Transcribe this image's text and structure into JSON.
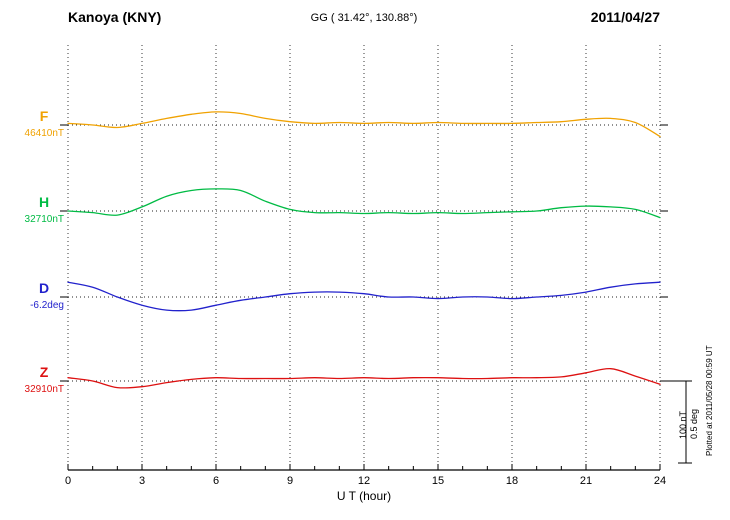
{
  "chart_data": {
    "type": "line",
    "station": "Kanoya (KNY)",
    "coordinates": "GG ( 31.42°, 130.88°)",
    "date": "2011/04/27",
    "xlabel": "U T (hour)",
    "x_range": [
      0,
      24
    ],
    "x_ticks": [
      0,
      3,
      6,
      9,
      12,
      15,
      18,
      21,
      24
    ],
    "x_hours": [
      0,
      1,
      2,
      3,
      4,
      5,
      6,
      7,
      8,
      9,
      10,
      11,
      12,
      13,
      14,
      15,
      16,
      17,
      18,
      19,
      20,
      21,
      22,
      23,
      24
    ],
    "grid": "vertical dotted gridlines every 3 hours; dotted horizontal baseline for each trace",
    "scale_bar": {
      "nt_label": "100 nT",
      "deg_label": "0.5 deg"
    },
    "plotted_at": "Plotted at 2011/05/28 00:59 UT",
    "series": [
      {
        "name": "F",
        "unit": "nT",
        "baseline_label": "46410nT",
        "baseline_value": 46410,
        "color": "#f0a202",
        "offsets": [
          2,
          0,
          -3,
          2,
          8,
          13,
          16,
          14,
          8,
          4,
          2,
          3,
          2,
          3,
          2,
          3,
          2,
          2,
          2,
          3,
          4,
          7,
          8,
          3,
          -14
        ]
      },
      {
        "name": "H",
        "unit": "nT",
        "baseline_label": "32710nT",
        "baseline_value": 32710,
        "color": "#00bb44",
        "offsets": [
          0,
          -2,
          -5,
          5,
          18,
          25,
          27,
          25,
          12,
          2,
          -2,
          -2,
          -3,
          -2,
          -3,
          -2,
          -3,
          -2,
          -1,
          0,
          4,
          6,
          5,
          2,
          -8
        ]
      },
      {
        "name": "D",
        "unit": "deg",
        "baseline_label": "-6.2deg",
        "baseline_value": -6.2,
        "color": "#2222cc",
        "offsets": [
          0.09,
          0.06,
          0,
          -0.05,
          -0.08,
          -0.08,
          -0.05,
          -0.02,
          0,
          0.02,
          0.03,
          0.03,
          0.02,
          0,
          0,
          -0.01,
          0,
          0,
          -0.01,
          0,
          0.01,
          0.03,
          0.06,
          0.08,
          0.09
        ]
      },
      {
        "name": "Z",
        "unit": "nT",
        "baseline_label": "32910nT",
        "baseline_value": 32910,
        "color": "#dd1111",
        "offsets": [
          4,
          0,
          -8,
          -7,
          -2,
          2,
          4,
          3,
          3,
          3,
          4,
          3,
          4,
          3,
          4,
          4,
          3,
          3,
          4,
          4,
          5,
          10,
          15,
          6,
          -4
        ]
      }
    ]
  }
}
